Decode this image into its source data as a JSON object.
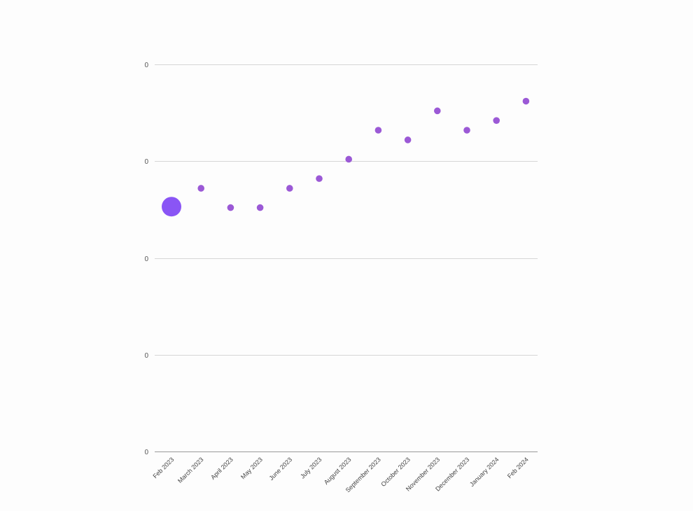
{
  "chart_data": {
    "type": "scatter",
    "title": "",
    "xlabel": "",
    "ylabel": "",
    "categories": [
      "Feb 2023",
      "March 2023",
      "April 2023",
      "May 2023",
      "June 2023",
      "July 2023",
      "August 2023",
      "September 2023",
      "October 2023",
      "November 2023",
      "December 2023",
      "January 2024",
      "Feb 2024"
    ],
    "values": [
      0.253,
      0.272,
      0.252,
      0.252,
      0.272,
      0.282,
      0.302,
      0.332,
      0.322,
      0.352,
      0.332,
      0.342,
      0.362
    ],
    "highlight_index": 0,
    "ylim": [
      0,
      0.4
    ],
    "y_tick_values": [
      0,
      0.1,
      0.2,
      0.3,
      0.4
    ],
    "y_tick_labels": [
      "0",
      "0",
      "0",
      "0",
      "0"
    ],
    "grid": true,
    "legend": "none",
    "colors": {
      "point": "#9b59d6",
      "highlight": "#8a55f5"
    }
  }
}
